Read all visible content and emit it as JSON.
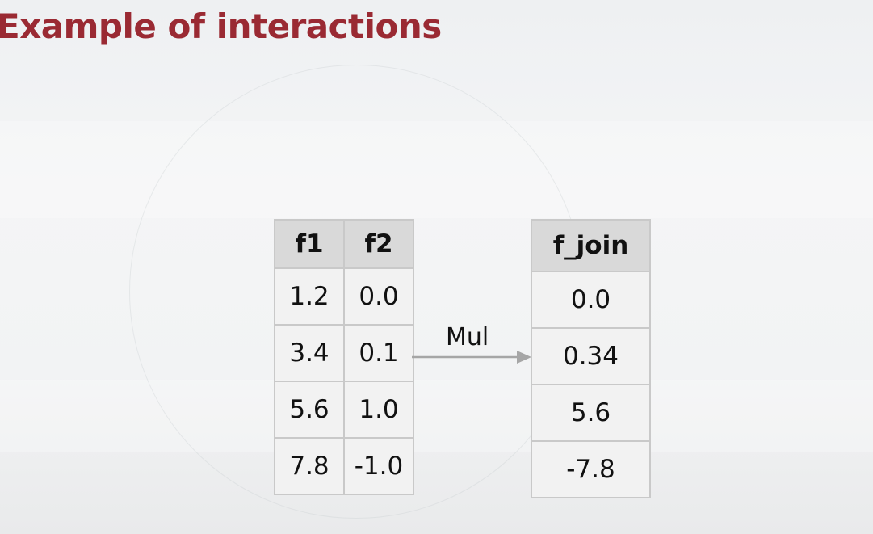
{
  "slide": {
    "title": "Example of interactions"
  },
  "input_table": {
    "headers": [
      "f1",
      "f2"
    ],
    "rows": [
      [
        "1.2",
        "0.0"
      ],
      [
        "3.4",
        "0.1"
      ],
      [
        "5.6",
        "1.0"
      ],
      [
        "7.8",
        "-1.0"
      ]
    ]
  },
  "operation": {
    "label": "Mul"
  },
  "output_table": {
    "header": "f_join",
    "rows": [
      "0.0",
      "0.34",
      "5.6",
      "-7.8"
    ]
  },
  "colors": {
    "title": "#9a2a33",
    "header_bg": "#d9d9d9",
    "cell_bg": "#f2f2f2",
    "arrow": "#a6a6a6"
  }
}
